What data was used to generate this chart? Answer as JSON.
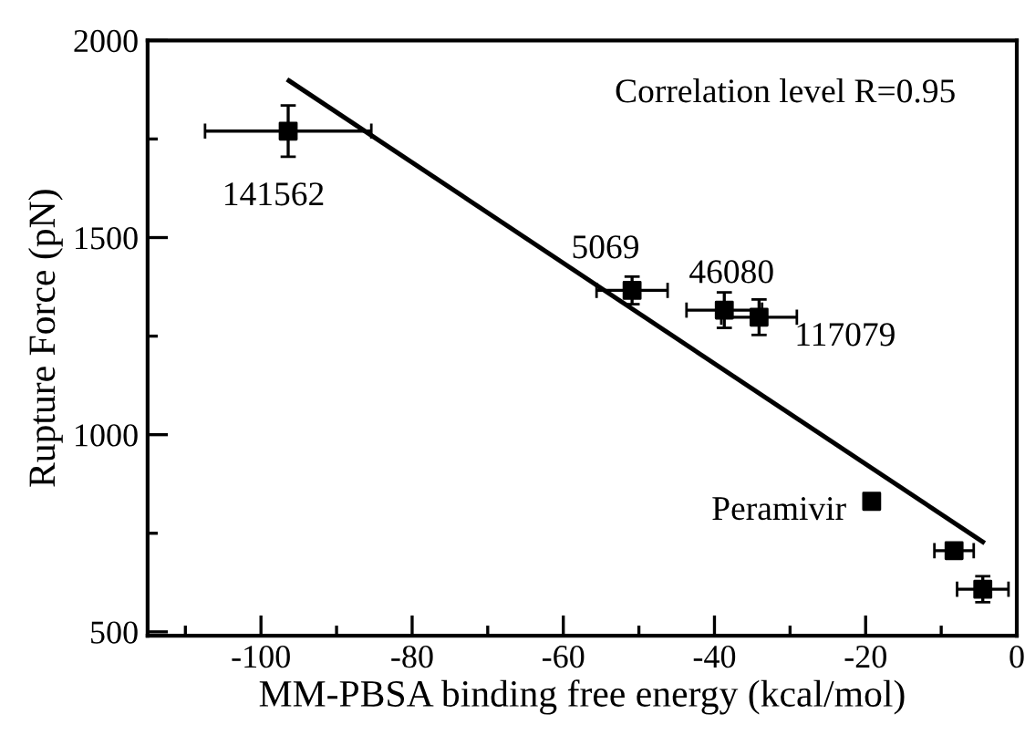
{
  "chart_data": {
    "type": "scatter",
    "xlabel": "MM-PBSA binding free energy (kcal/mol)",
    "ylabel": "Rupture Force (pN)",
    "xlim": [
      -115,
      0
    ],
    "ylim": [
      490,
      2000
    ],
    "xticks": [
      {
        "value": -110,
        "label": null
      },
      -100,
      {
        "value": -90,
        "label": null
      },
      -80,
      {
        "value": -70,
        "label": null
      },
      -60,
      {
        "value": -50,
        "label": null
      },
      -40,
      {
        "value": -30,
        "label": null
      },
      -20,
      {
        "value": -10,
        "label": null
      },
      0
    ],
    "yticks": [
      500,
      {
        "value": 750,
        "label": null
      },
      1000,
      {
        "value": 1250,
        "label": null
      },
      1500,
      {
        "value": 1750,
        "label": null
      },
      2000
    ],
    "grid": false,
    "legend": false,
    "series": [
      {
        "color": "#000000",
        "marker": "square",
        "x": [
          -96.4,
          -50.9,
          -38.7,
          -34.1,
          -19.2,
          -8.3,
          -4.5
        ],
        "values": [
          1770,
          1366,
          1316,
          1298,
          831,
          706,
          608
        ],
        "errors": [
          65,
          35,
          45,
          45,
          null,
          null,
          33
        ],
        "xerrors": [
          11,
          4.7,
          5,
          5,
          null,
          2.6,
          3.4
        ]
      },
      {
        "type": "line",
        "color": "#000000",
        "marker": "none",
        "line_style": "solid",
        "x": [
          -96.3,
          -4.5
        ],
        "values": [
          1898,
          728
        ]
      }
    ],
    "annotations": [
      "Correlation level R=0.95",
      {
        "text": "141562",
        "x": -96.4,
        "y": 1770
      },
      {
        "text": "5069",
        "x": -50.9,
        "y": 1366
      },
      {
        "text": "46080",
        "x": -38.7,
        "y": 1316
      },
      {
        "text": "117079",
        "x": -34.1,
        "y": 1298
      },
      {
        "text": "Peramivir",
        "x": -19.2,
        "y": 831
      }
    ]
  }
}
